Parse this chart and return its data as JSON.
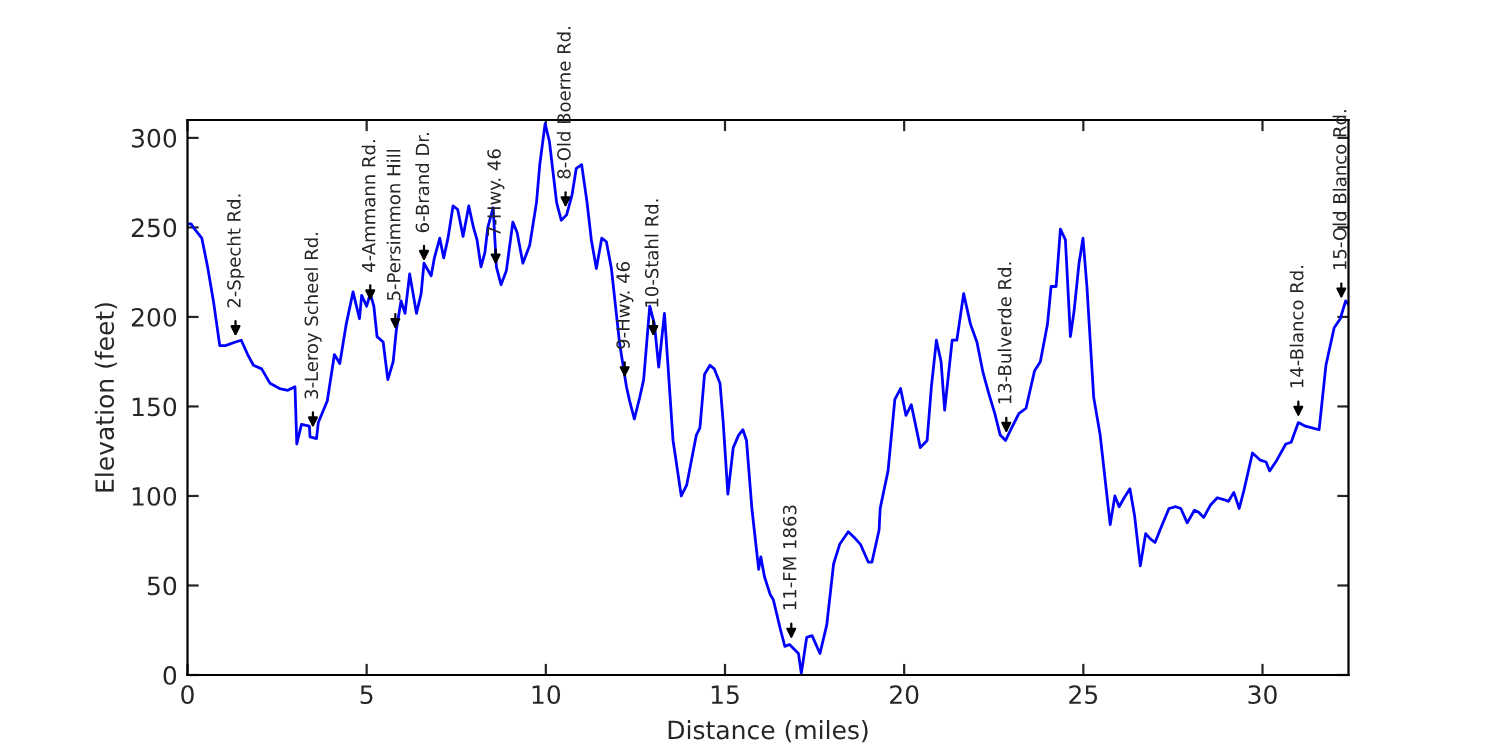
{
  "chart_data": {
    "type": "line",
    "xlabel": "Distance (miles)",
    "ylabel": "Elevation (feet)",
    "x": [
      0,
      0.1,
      0.2,
      0.4,
      0.56,
      0.73,
      0.9,
      1.06,
      1.34,
      1.5,
      1.68,
      1.84,
      2.07,
      2.3,
      2.57,
      2.8,
      3.0,
      3.05,
      3.18,
      3.4,
      3.42,
      3.6,
      3.65,
      3.9,
      4.1,
      4.25,
      4.43,
      4.62,
      4.8,
      4.86,
      5.0,
      5.1,
      5.2,
      5.29,
      5.46,
      5.59,
      5.74,
      5.83,
      5.96,
      6.07,
      6.2,
      6.33,
      6.39,
      6.52,
      6.6,
      6.8,
      6.89,
      7.04,
      7.15,
      7.27,
      7.41,
      7.54,
      7.69,
      7.85,
      7.98,
      8.08,
      8.19,
      8.3,
      8.38,
      8.53,
      8.62,
      8.75,
      8.9,
      9.08,
      9.2,
      9.36,
      9.55,
      9.74,
      9.83,
      9.98,
      10.1,
      10.3,
      10.43,
      10.58,
      10.73,
      10.85,
      11.0,
      11.15,
      11.27,
      11.41,
      11.56,
      11.69,
      11.83,
      12.06,
      12.25,
      12.34,
      12.47,
      12.62,
      12.73,
      12.9,
      13.03,
      13.15,
      13.31,
      13.55,
      13.78,
      13.93,
      14.2,
      14.3,
      14.43,
      14.58,
      14.7,
      14.86,
      14.95,
      15.08,
      15.23,
      15.38,
      15.5,
      15.6,
      15.75,
      15.94,
      16.0,
      16.1,
      16.26,
      16.35,
      16.54,
      16.67,
      16.8,
      17.05,
      17.13,
      17.28,
      17.43,
      17.65,
      17.84,
      18.03,
      18.2,
      18.44,
      18.6,
      18.78,
      19.0,
      19.1,
      19.3,
      19.33,
      19.55,
      19.74,
      19.9,
      20.05,
      20.2,
      20.45,
      20.64,
      20.76,
      20.9,
      21.03,
      21.13,
      21.34,
      21.47,
      21.66,
      21.85,
      22.03,
      22.2,
      22.35,
      22.53,
      22.68,
      22.83,
      23.0,
      23.2,
      23.4,
      23.64,
      23.8,
      24.0,
      24.1,
      24.24,
      24.36,
      24.5,
      24.64,
      24.74,
      24.88,
      24.99,
      25.1,
      25.29,
      25.47,
      25.62,
      25.75,
      25.88,
      26.0,
      26.14,
      26.3,
      26.43,
      26.59,
      26.74,
      26.87,
      27.0,
      27.18,
      27.39,
      27.58,
      27.72,
      27.9,
      28.1,
      28.21,
      28.36,
      28.55,
      28.74,
      28.92,
      29.05,
      29.2,
      29.35,
      29.48,
      29.72,
      29.94,
      30.1,
      30.2,
      30.4,
      30.65,
      30.8,
      31.0,
      31.2,
      31.58,
      31.77,
      32.0,
      32.17,
      32.32,
      32.4
    ],
    "values": [
      252,
      252,
      249,
      244,
      228,
      208,
      184,
      184,
      186,
      187,
      179,
      173,
      171,
      163,
      160,
      159,
      161,
      129,
      140,
      139,
      133,
      132,
      141,
      153,
      179,
      174,
      196,
      214,
      199,
      212,
      206,
      213,
      206,
      189,
      186,
      165,
      175,
      193,
      209,
      202,
      224,
      209,
      202,
      213,
      230,
      223,
      233,
      244,
      233,
      244,
      262,
      260,
      245,
      262,
      250,
      243,
      228,
      236,
      250,
      261,
      228,
      218,
      226,
      253,
      247,
      230,
      240,
      264,
      285,
      308,
      298,
      264,
      254,
      257,
      268,
      283,
      285,
      264,
      243,
      227,
      244,
      242,
      227,
      185,
      161,
      153,
      143,
      155,
      165,
      206,
      196,
      172,
      202,
      131,
      100,
      106,
      134,
      138,
      168,
      173,
      171,
      163,
      141,
      101,
      127,
      134,
      137,
      131,
      93,
      59,
      66,
      55,
      45,
      42,
      26,
      16,
      17,
      12,
      1,
      21,
      22,
      12,
      28,
      62,
      73,
      80,
      77,
      73,
      63,
      63,
      81,
      93,
      114,
      154,
      160,
      145,
      151,
      127,
      131,
      161,
      187,
      175,
      148,
      187,
      187,
      213,
      196,
      186,
      169,
      158,
      146,
      134,
      131,
      138,
      146,
      149,
      170,
      175,
      196,
      217,
      217,
      249,
      243,
      189,
      203,
      230,
      244,
      217,
      155,
      134,
      107,
      84,
      100,
      94,
      99,
      104,
      89,
      61,
      79,
      76,
      74,
      83,
      93,
      94,
      93,
      85,
      92,
      91,
      88,
      95,
      99,
      98,
      97,
      102,
      93,
      103,
      124,
      120,
      119,
      114,
      120,
      129,
      130,
      141,
      139,
      137,
      173,
      194,
      199,
      209,
      207
    ],
    "color": "#0000ff",
    "xlim": [
      0,
      32.4
    ],
    "ylim": [
      0,
      310
    ],
    "xticks": [
      0,
      5,
      10,
      15,
      20,
      25,
      30
    ],
    "yticks": [
      0,
      50,
      100,
      150,
      200,
      250,
      300
    ],
    "grid": false,
    "legend": false,
    "annotations": [
      {
        "text": "2-Specht Rd.",
        "x": 1.34,
        "y": 186
      },
      {
        "text": "3-Leroy Scheel Rd.",
        "x": 3.5,
        "y": 135
      },
      {
        "text": "4-Ammann Rd.",
        "x": 5.1,
        "y": 206
      },
      {
        "text": "5-Persimmon Hill",
        "x": 5.8,
        "y": 190
      },
      {
        "text": "6-Brand Dr.",
        "x": 6.6,
        "y": 228
      },
      {
        "text": "7-Hwy. 46",
        "x": 8.6,
        "y": 226
      },
      {
        "text": "8-Old Boerne Rd.",
        "x": 10.55,
        "y": 258
      },
      {
        "text": "9-Hwy. 46",
        "x": 12.2,
        "y": 163
      },
      {
        "text": "10-Stahl Rd.",
        "x": 13.0,
        "y": 186
      },
      {
        "text": "11-FM 1863",
        "x": 16.85,
        "y": 17
      },
      {
        "text": "13-Bulverde Rd.",
        "x": 22.85,
        "y": 132
      },
      {
        "text": "14-Blanco Rd.",
        "x": 31.0,
        "y": 141
      },
      {
        "text": "15-Old Blanco Rd.",
        "x": 32.2,
        "y": 207
      }
    ]
  }
}
